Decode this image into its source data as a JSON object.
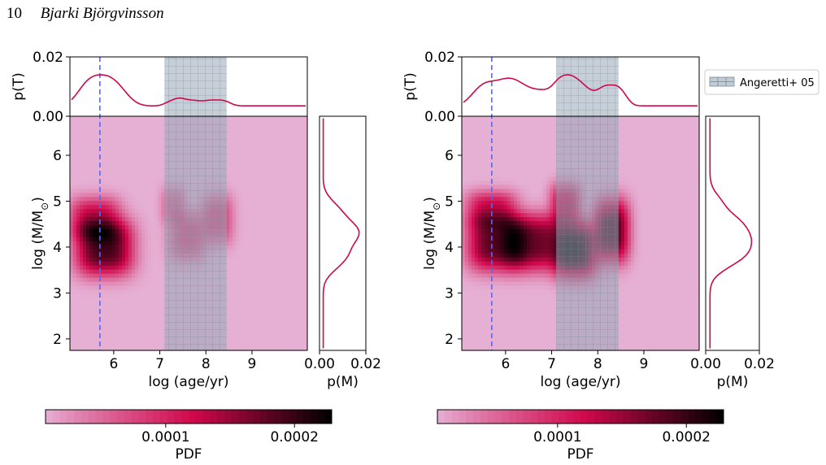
{
  "header": {
    "page_number": "10",
    "author": "Bjarki Björgvinsson"
  },
  "colors": {
    "pdf_low": "#e6b0d4",
    "pdf_mid": "#d0084b",
    "pdf_high": "#000000",
    "marginal_line": "#cc0a4a",
    "vline": "#5a67e8",
    "band_fill": "#98a8b8"
  },
  "legend": {
    "label": "Angeretti+ 05"
  },
  "chart_data": [
    {
      "type": "heatmap",
      "xlabel": "log (age/yr)",
      "ylabel": "log (M/M",
      "ylabel_sub": "⊙",
      "ylabel_close": ")",
      "xlim": [
        5.05,
        10.2
      ],
      "ylim": [
        1.75,
        6.85
      ],
      "x_ticks": [
        "6",
        "7",
        "8",
        "9"
      ],
      "y_ticks": [
        "2",
        "3",
        "4",
        "5",
        "6"
      ],
      "vline_x": 5.7,
      "band": [
        7.1,
        8.45
      ],
      "top_panel": {
        "ylabel": "p(T)",
        "y_ticks": [
          "0.02",
          "0.00"
        ],
        "ylim": [
          0,
          0.02
        ]
      },
      "right_panel": {
        "xlabel": "p(M)",
        "x_ticks": [
          "0.00",
          "0.02"
        ],
        "xlim": [
          0,
          0.02
        ]
      },
      "colorbar": {
        "label": "PDF",
        "ticks": [
          "0.0001",
          "0.0002"
        ]
      },
      "blobs": [
        {
          "x": 5.8,
          "y": 4.0,
          "sx": 0.45,
          "sy": 0.45,
          "w": 1.0
        },
        {
          "x": 5.6,
          "y": 4.6,
          "sx": 0.4,
          "sy": 0.35,
          "w": 0.55
        },
        {
          "x": 7.6,
          "y": 4.25,
          "sx": 0.3,
          "sy": 0.4,
          "w": 0.3
        },
        {
          "x": 8.25,
          "y": 4.6,
          "sx": 0.25,
          "sy": 0.4,
          "w": 0.3
        },
        {
          "x": 7.3,
          "y": 4.9,
          "sx": 0.2,
          "sy": 0.3,
          "w": 0.2
        }
      ]
    },
    {
      "type": "heatmap",
      "xlabel": "log (age/yr)",
      "ylabel": "log (M/M",
      "ylabel_sub": "⊙",
      "ylabel_close": ")",
      "xlim": [
        5.05,
        10.2
      ],
      "ylim": [
        1.75,
        6.85
      ],
      "x_ticks": [
        "6",
        "7",
        "8",
        "9"
      ],
      "y_ticks": [
        "2",
        "3",
        "4",
        "5",
        "6"
      ],
      "vline_x": 5.7,
      "band": [
        7.1,
        8.45
      ],
      "top_panel": {
        "ylabel": "p(T)",
        "y_ticks": [
          "0.02",
          "0.00"
        ],
        "ylim": [
          0,
          0.02
        ]
      },
      "right_panel": {
        "xlabel": "p(M)",
        "x_ticks": [
          "0.00",
          "0.02"
        ],
        "xlim": [
          0,
          0.02
        ]
      },
      "colorbar": {
        "label": "PDF",
        "ticks": [
          "0.0001",
          "0.0002"
        ]
      },
      "blobs": [
        {
          "x": 5.8,
          "y": 4.1,
          "sx": 0.45,
          "sy": 0.45,
          "w": 0.75
        },
        {
          "x": 6.6,
          "y": 4.1,
          "sx": 0.45,
          "sy": 0.45,
          "w": 0.7
        },
        {
          "x": 7.5,
          "y": 3.95,
          "sx": 0.35,
          "sy": 0.45,
          "w": 0.95
        },
        {
          "x": 8.3,
          "y": 4.35,
          "sx": 0.28,
          "sy": 0.5,
          "w": 0.8
        },
        {
          "x": 7.3,
          "y": 4.9,
          "sx": 0.25,
          "sy": 0.35,
          "w": 0.45
        },
        {
          "x": 5.7,
          "y": 4.8,
          "sx": 0.4,
          "sy": 0.3,
          "w": 0.45
        }
      ]
    }
  ]
}
